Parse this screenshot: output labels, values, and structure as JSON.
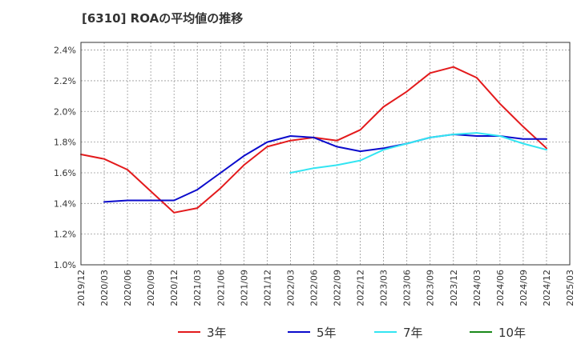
{
  "chart_data": {
    "type": "line",
    "title": "[6310]  ROAの平均値の推移",
    "xlabel": "",
    "ylabel": "",
    "x": [
      "2019/12",
      "2020/03",
      "2020/06",
      "2020/09",
      "2020/12",
      "2021/03",
      "2021/06",
      "2021/09",
      "2021/12",
      "2022/03",
      "2022/06",
      "2022/09",
      "2022/12",
      "2023/03",
      "2023/06",
      "2023/09",
      "2023/12",
      "2024/03",
      "2024/06",
      "2024/09",
      "2024/12",
      "2025/03"
    ],
    "ylim": [
      1.0,
      2.45
    ],
    "yticks": [
      1.0,
      1.2,
      1.4,
      1.6,
      1.8,
      2.0,
      2.2,
      2.4
    ],
    "ytick_labels": [
      "1.0%",
      "1.2%",
      "1.4%",
      "1.6%",
      "1.8%",
      "2.0%",
      "2.2%",
      "2.4%"
    ],
    "grid": true,
    "legend_position": "bottom",
    "series": [
      {
        "name": "3年",
        "color": "#e31a1c",
        "values": [
          1.72,
          1.69,
          1.62,
          1.48,
          1.34,
          1.37,
          1.5,
          1.65,
          1.77,
          1.81,
          1.83,
          1.81,
          1.88,
          2.03,
          2.13,
          2.25,
          2.29,
          2.22,
          2.05,
          1.9,
          1.76,
          null
        ]
      },
      {
        "name": "5年",
        "color": "#0b0bcc",
        "values": [
          null,
          1.41,
          1.42,
          1.42,
          1.42,
          1.49,
          1.6,
          1.71,
          1.8,
          1.84,
          1.83,
          1.77,
          1.74,
          1.76,
          1.79,
          1.83,
          1.85,
          1.84,
          1.84,
          1.82,
          1.82,
          null
        ]
      },
      {
        "name": "7年",
        "color": "#33e5f2",
        "values": [
          null,
          null,
          null,
          null,
          null,
          null,
          null,
          null,
          null,
          1.6,
          1.63,
          1.65,
          1.68,
          1.75,
          1.79,
          1.83,
          1.85,
          1.86,
          1.84,
          1.79,
          1.75,
          null
        ]
      },
      {
        "name": "10年",
        "color": "#1a8a1a",
        "values": [
          null,
          null,
          null,
          null,
          null,
          null,
          null,
          null,
          null,
          null,
          null,
          null,
          null,
          null,
          null,
          null,
          null,
          null,
          null,
          null,
          null,
          null
        ]
      }
    ]
  }
}
